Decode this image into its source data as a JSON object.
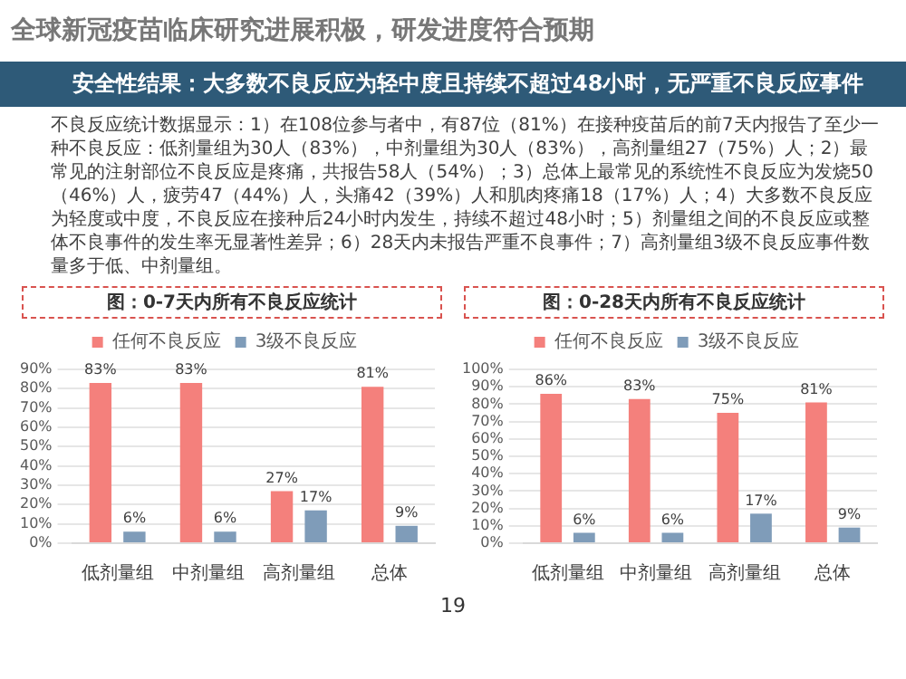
{
  "chart_data": [
    {
      "type": "other",
      "title": "全球新冠疫苗临床研究进展积极，研发进度符合预期",
      "subtitle": "安全性结果：大多数不良反应为轻中度且持续不超过48小时，无严重不良反应事件",
      "annotations": [
        "不良反应统计数据显示：1）在108位参与者中，有87位（81%）在接种疫苗后的前7天内报告了至少一种不良反应：低剂量组为30人（83%），中剂量组为30人（83%），高剂量组27（75%）人；2）最常见的注射部位不良反应是疼痛，共报告58人（54%）；3）总体上最常见的系统性不良反应为发烧50（46%）人，疲劳47（44%）人，头痛42（39%）人和肌肉疼痛18（17%）人；4）大多数不良反应为轻度或中度，不良反应在接种后24小时内发生，持续不超过48小时；5）剂量组之间的不良反应或整体不良事件的发生率无显著性差异；6）28天内未报告严重不良事件；7）高剂量组3级不良反应事件数量多于低、中剂量组。",
        "19"
      ]
    },
    {
      "type": "bar",
      "title": "图：0-7天内所有不良反应统计",
      "categories": [
        "低剂量组",
        "中剂量组",
        "高剂量组",
        "总体"
      ],
      "series": [
        {
          "name": "任何不良反应",
          "color": "#f4807c",
          "values": [
            83,
            83,
            27,
            81
          ],
          "value_labels": [
            "83%",
            "83%",
            "27%",
            "81%"
          ]
        },
        {
          "name": "3级不良反应",
          "color": "#7f9cb9",
          "values": [
            6,
            6,
            17,
            9
          ],
          "value_labels": [
            "6%",
            "6%",
            "17%",
            "9%"
          ]
        }
      ],
      "ylim": [
        0,
        90
      ],
      "yticks": [
        {
          "value": 0,
          "label": "0%"
        },
        {
          "value": 10,
          "label": "10%"
        },
        {
          "value": 20,
          "label": "20%"
        },
        {
          "value": 30,
          "label": "30%"
        },
        {
          "value": 40,
          "label": "40%"
        },
        {
          "value": 50,
          "label": "50%"
        },
        {
          "value": 60,
          "label": "60%"
        },
        {
          "value": 70,
          "label": "70%"
        },
        {
          "value": 80,
          "label": "80%"
        },
        {
          "value": 90,
          "label": "90%"
        }
      ],
      "grid": "y",
      "legend": "top"
    },
    {
      "type": "bar",
      "title": "图：0-28天内所有不良反应统计",
      "categories": [
        "低剂量组",
        "中剂量组",
        "高剂量组",
        "总体"
      ],
      "series": [
        {
          "name": "任何不良反应",
          "color": "#f4807c",
          "values": [
            86,
            83,
            75,
            81
          ],
          "value_labels": [
            "86%",
            "83%",
            "75%",
            "81%"
          ]
        },
        {
          "name": "3级不良反应",
          "color": "#7f9cb9",
          "values": [
            6,
            6,
            17,
            9
          ],
          "value_labels": [
            "6%",
            "6%",
            "17%",
            "9%"
          ]
        }
      ],
      "ylim": [
        0,
        100
      ],
      "yticks": [
        {
          "value": 0,
          "label": "0%"
        },
        {
          "value": 10,
          "label": "10%"
        },
        {
          "value": 20,
          "label": "20%"
        },
        {
          "value": 30,
          "label": "30%"
        },
        {
          "value": 40,
          "label": "40%"
        },
        {
          "value": 50,
          "label": "50%"
        },
        {
          "value": 60,
          "label": "60%"
        },
        {
          "value": 70,
          "label": "70%"
        },
        {
          "value": 80,
          "label": "80%"
        },
        {
          "value": 90,
          "label": "90%"
        },
        {
          "value": 100,
          "label": "100%"
        }
      ],
      "grid": "y",
      "legend": "top"
    }
  ]
}
